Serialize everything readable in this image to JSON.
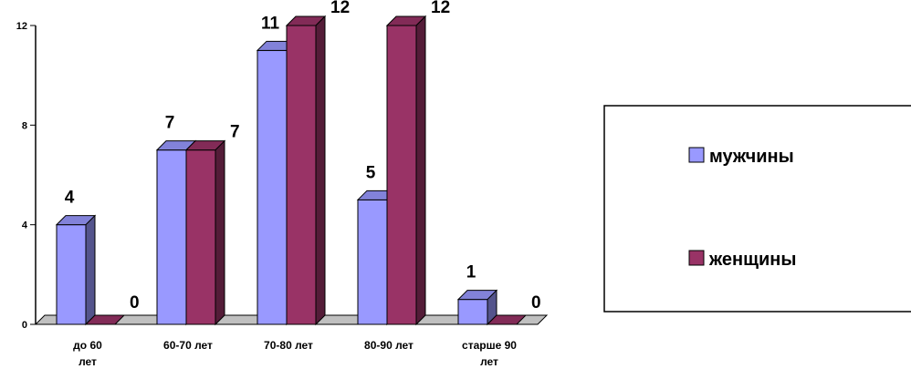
{
  "chart_data": {
    "type": "bar",
    "categories": [
      "до 60 лет",
      "60-70 лет",
      "70-80 лет",
      "80-90 лет",
      "старше 90 лет"
    ],
    "series": [
      {
        "name": "мужчины",
        "values": [
          4,
          7,
          11,
          5,
          1
        ],
        "color": "#9999ff"
      },
      {
        "name": "женщины",
        "values": [
          0,
          7,
          12,
          12,
          0
        ],
        "color": "#993366"
      }
    ],
    "yticks": [
      "0",
      "4",
      "8",
      "12"
    ],
    "ylim": [
      0,
      12
    ],
    "grid": false,
    "legend_position": "right",
    "three_d": true
  }
}
